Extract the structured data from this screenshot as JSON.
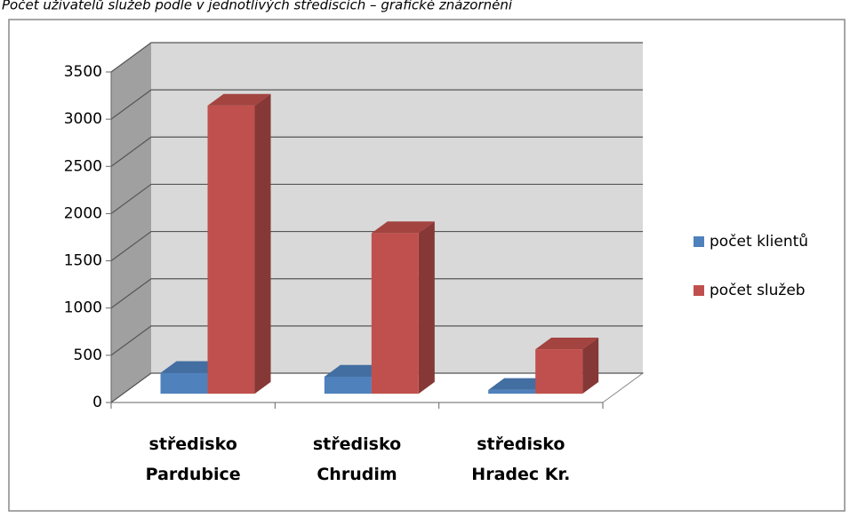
{
  "chart_data": {
    "type": "bar3d",
    "title": "Počet uživatelů služeb podle v jednotlivých střediscích – grafické znázornění",
    "categories": [
      "středisko Pardubice",
      "středisko Chrudim",
      "středisko Hradec Kr."
    ],
    "series": [
      {
        "name": "počet klientů",
        "color": "#4f81bd",
        "values": [
          220,
          180,
          40
        ]
      },
      {
        "name": "počet služeb",
        "color": "#c0504d",
        "values": [
          3050,
          1700,
          470
        ]
      }
    ],
    "ylim": [
      0,
      3500
    ],
    "yticks": [
      0,
      500,
      1000,
      1500,
      2000,
      2500,
      3000,
      3500
    ],
    "grid": true,
    "legend": "right"
  }
}
